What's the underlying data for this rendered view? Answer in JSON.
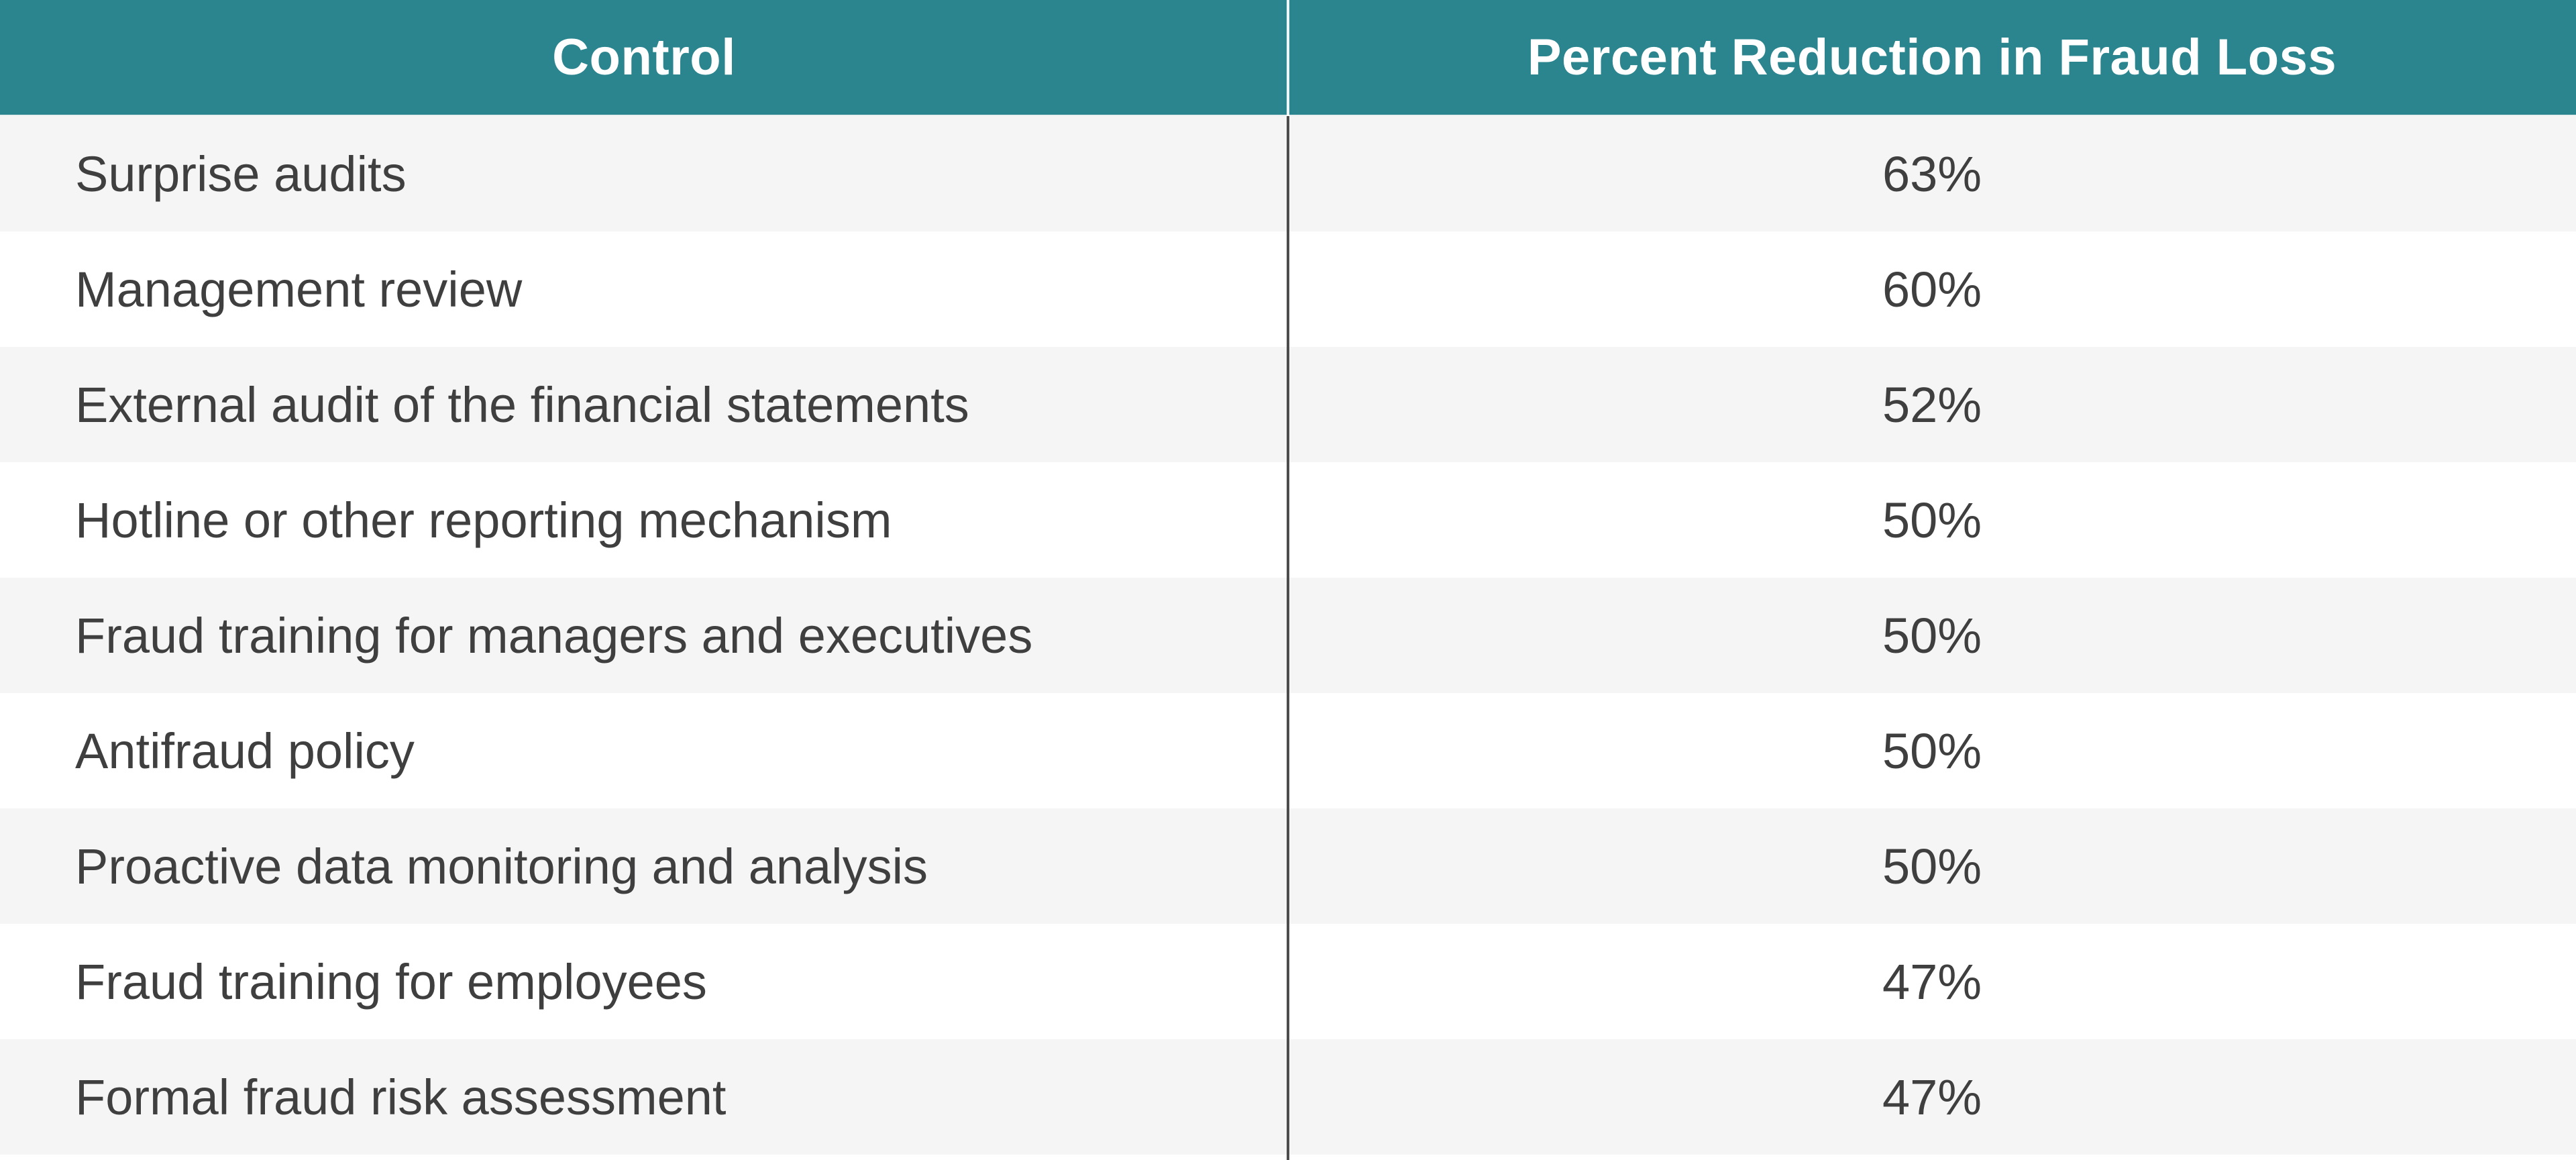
{
  "table": {
    "header": {
      "control_label": "Control",
      "percent_label": "Percent Reduction in Fraud Loss"
    },
    "rows": [
      {
        "control": "Surprise audits",
        "percent": "63%"
      },
      {
        "control": "Management review",
        "percent": "60%"
      },
      {
        "control": "External audit of the financial statements",
        "percent": "52%"
      },
      {
        "control": "Hotline or other reporting mechanism",
        "percent": "50%"
      },
      {
        "control": "Fraud training for managers and executives",
        "percent": "50%"
      },
      {
        "control": "Antifraud policy",
        "percent": "50%"
      },
      {
        "control": "Proactive data monitoring and analysis",
        "percent": "50%"
      },
      {
        "control": "Fraud training for employees",
        "percent": "47%"
      },
      {
        "control": "Formal fraud risk assessment",
        "percent": "47%"
      }
    ],
    "colors": {
      "header_bg": "#2b858f",
      "header_text": "#ffffff",
      "row_alt_bg": "#f5f5f6",
      "row_bg": "#ffffff",
      "body_text": "#3f3f3f",
      "divider_dark": "#4d4d4d",
      "divider_light": "#ffffff"
    }
  },
  "chart_data": {
    "type": "table",
    "title": "",
    "columns": [
      "Control",
      "Percent Reduction in Fraud Loss"
    ],
    "rows": [
      [
        "Surprise audits",
        "63%"
      ],
      [
        "Management review",
        "60%"
      ],
      [
        "External audit of the financial statements",
        "52%"
      ],
      [
        "Hotline or other reporting mechanism",
        "50%"
      ],
      [
        "Fraud training for managers and executives",
        "50%"
      ],
      [
        "Antifraud policy",
        "50%"
      ],
      [
        "Proactive data monitoring and analysis",
        "50%"
      ],
      [
        "Fraud training for employees",
        "47%"
      ],
      [
        "Formal fraud risk assessment",
        "47%"
      ]
    ],
    "categories": [
      "Surprise audits",
      "Management review",
      "External audit of the financial statements",
      "Hotline or other reporting mechanism",
      "Fraud training for managers and executives",
      "Antifraud policy",
      "Proactive data monitoring and analysis",
      "Fraud training for employees",
      "Formal fraud risk assessment"
    ],
    "values": [
      63,
      60,
      52,
      50,
      50,
      50,
      50,
      47,
      47
    ],
    "value_unit": "percent",
    "layout_hints": {
      "header_style": "teal band, white bold centered text",
      "row_striping": "alternating light-gray / white starting gray",
      "column_divider": "thin dark vertical rule between columns, white within header",
      "control_column_alignment": "left",
      "percent_column_alignment": "center"
    }
  }
}
